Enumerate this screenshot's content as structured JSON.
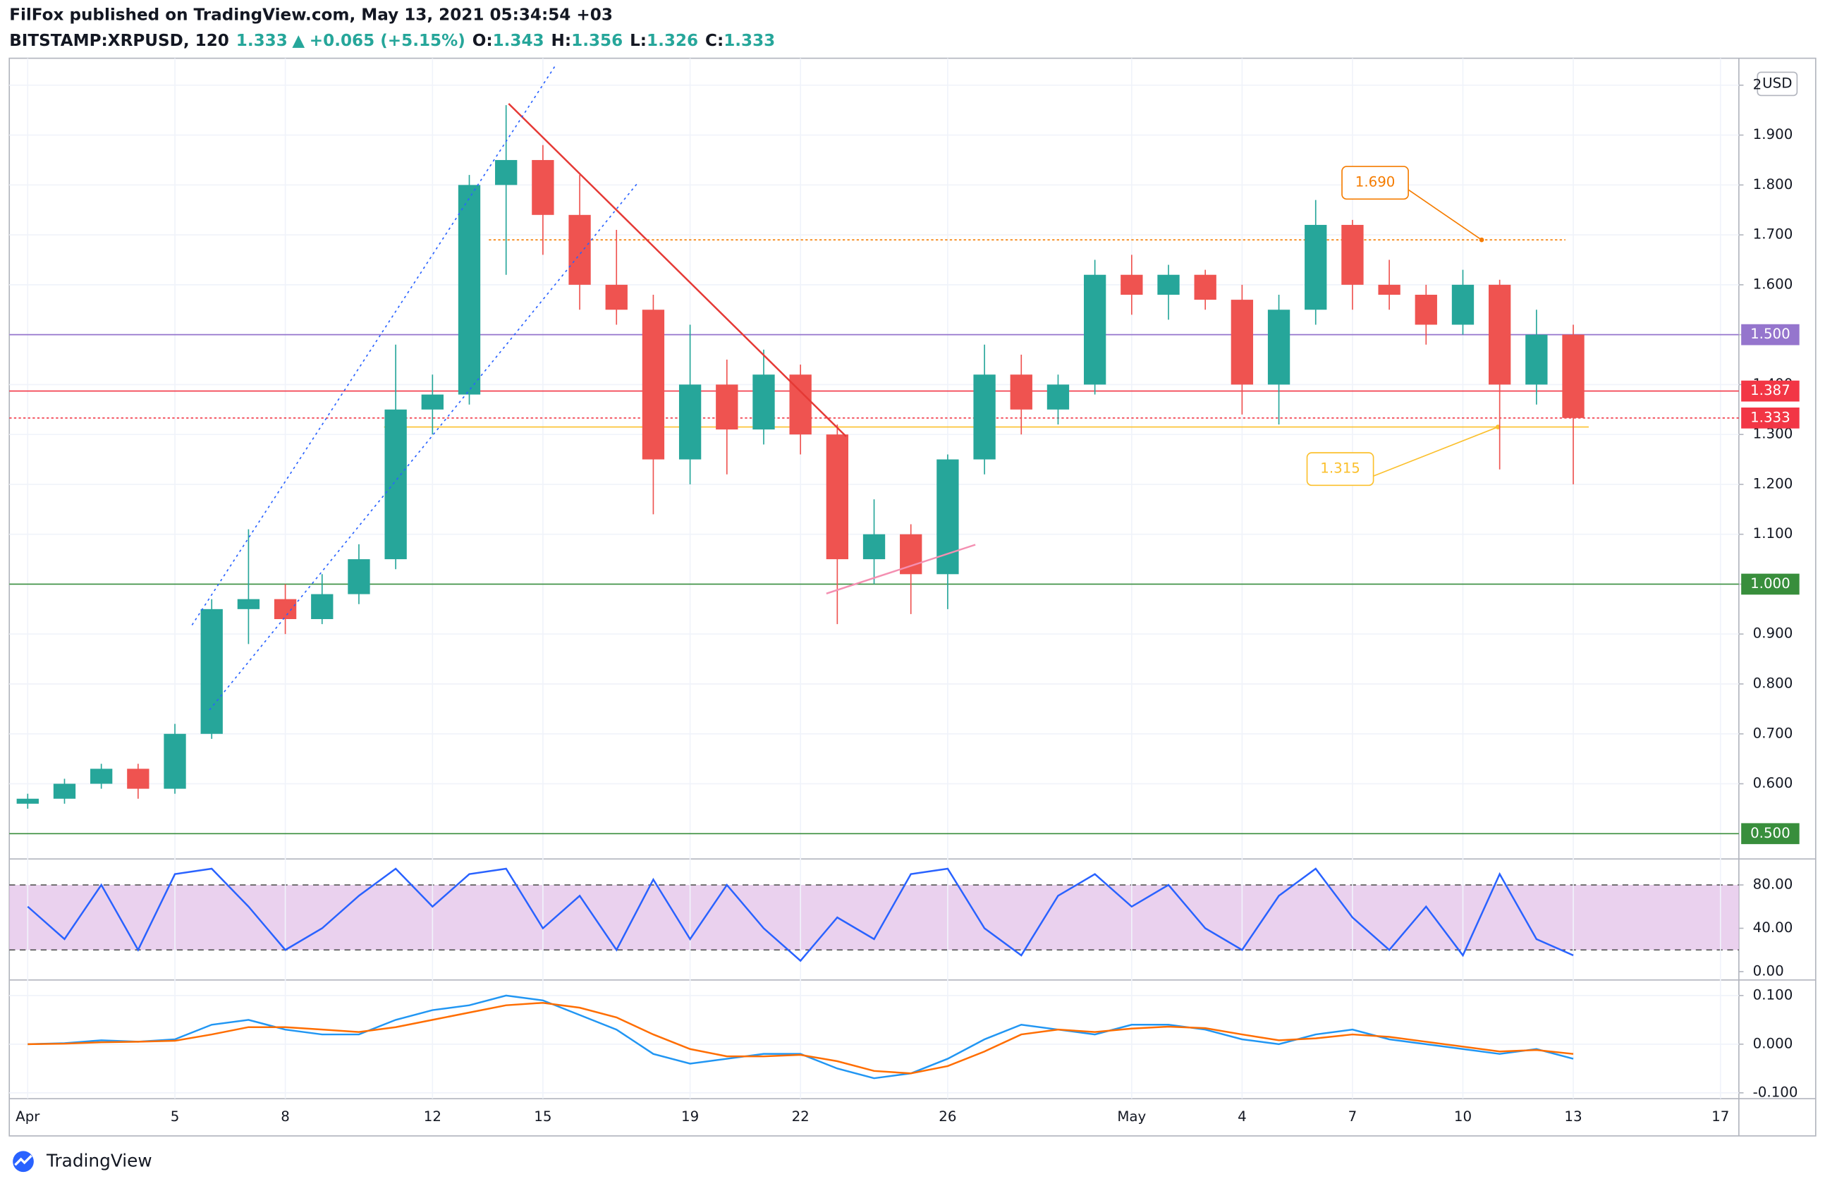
{
  "header": {
    "byline": "FilFox published on TradingView.com, May 13, 2021 05:34:54 +03",
    "symbol": "BITSTAMP:XRPUSD, 120",
    "last": "1.333",
    "arrow": "▲",
    "change": "+0.065 (+5.15%)",
    "o_label": "O:",
    "o": "1.343",
    "h_label": "H:",
    "h": "1.356",
    "l_label": "L:",
    "l": "1.326",
    "c_label": "C:",
    "c": "1.333"
  },
  "footer": {
    "brand": "TradingView"
  },
  "chart_data": {
    "type": "candlestick",
    "currency": "USD",
    "categories": [
      "Apr",
      null,
      null,
      null,
      "5",
      null,
      null,
      "8",
      null,
      null,
      null,
      "12",
      null,
      null,
      "15",
      null,
      null,
      null,
      "19",
      null,
      null,
      "22",
      null,
      null,
      null,
      "26",
      null,
      null,
      null,
      null,
      "May",
      null,
      null,
      "4",
      null,
      null,
      "7",
      null,
      null,
      "10",
      null,
      null,
      "13",
      null,
      null,
      null,
      "17"
    ],
    "open": [
      0.56,
      0.57,
      0.6,
      0.63,
      0.59,
      0.7,
      0.95,
      0.97,
      0.93,
      0.98,
      1.05,
      1.35,
      1.38,
      1.8,
      1.85,
      1.74,
      1.6,
      1.55,
      1.25,
      1.4,
      1.31,
      1.42,
      1.3,
      1.05,
      1.1,
      1.02,
      1.25,
      1.42,
      1.35,
      1.4,
      1.62,
      1.58,
      1.62,
      1.57,
      1.4,
      1.55,
      1.72,
      1.6,
      1.58,
      1.52,
      1.6,
      1.4,
      1.5,
      null,
      null,
      null,
      null
    ],
    "high": [
      0.58,
      0.61,
      0.64,
      0.64,
      0.72,
      0.97,
      1.11,
      1.0,
      1.02,
      1.08,
      1.48,
      1.42,
      1.82,
      1.96,
      1.88,
      1.82,
      1.71,
      1.58,
      1.52,
      1.45,
      1.47,
      1.44,
      1.32,
      1.17,
      1.12,
      1.26,
      1.48,
      1.46,
      1.42,
      1.65,
      1.66,
      1.64,
      1.63,
      1.6,
      1.58,
      1.77,
      1.73,
      1.65,
      1.6,
      1.63,
      1.61,
      1.55,
      1.52,
      null,
      null,
      null,
      null
    ],
    "low": [
      0.55,
      0.56,
      0.59,
      0.57,
      0.58,
      0.69,
      0.88,
      0.9,
      0.92,
      0.96,
      1.03,
      1.3,
      1.36,
      1.62,
      1.66,
      1.55,
      1.52,
      1.14,
      1.2,
      1.22,
      1.28,
      1.26,
      0.92,
      1.0,
      0.94,
      0.95,
      1.22,
      1.3,
      1.32,
      1.38,
      1.54,
      1.53,
      1.55,
      1.34,
      1.32,
      1.52,
      1.55,
      1.55,
      1.48,
      1.5,
      1.23,
      1.36,
      1.2,
      null,
      null,
      null,
      null
    ],
    "close": [
      0.57,
      0.6,
      0.63,
      0.59,
      0.7,
      0.95,
      0.97,
      0.93,
      0.98,
      1.05,
      1.35,
      1.38,
      1.8,
      1.85,
      1.74,
      1.6,
      1.55,
      1.25,
      1.4,
      1.31,
      1.42,
      1.3,
      1.05,
      1.1,
      1.02,
      1.25,
      1.42,
      1.35,
      1.4,
      1.62,
      1.58,
      1.62,
      1.57,
      1.4,
      1.55,
      1.72,
      1.6,
      1.58,
      1.52,
      1.6,
      1.4,
      1.5,
      1.333,
      null,
      null,
      null,
      null
    ],
    "up_color": "#26a69a",
    "down_color": "#ef5350",
    "ylim": [
      0.454,
      2.054
    ],
    "yticks": [
      {
        "value": 0.6,
        "label": "0.600"
      },
      {
        "value": 0.7,
        "label": "0.700"
      },
      {
        "value": 0.8,
        "label": "0.800"
      },
      {
        "value": 0.9,
        "label": "0.900"
      },
      {
        "value": 1.0,
        "label": "1.000"
      },
      {
        "value": 1.1,
        "label": "1.100"
      },
      {
        "value": 1.2,
        "label": "1.200"
      },
      {
        "value": 1.3,
        "label": "1.300"
      },
      {
        "value": 1.4,
        "label": "1.400"
      },
      {
        "value": 1.5,
        "label": "1.500"
      },
      {
        "value": 1.6,
        "label": "1.600"
      },
      {
        "value": 1.7,
        "label": "1.700"
      },
      {
        "value": 1.8,
        "label": "1.800"
      },
      {
        "value": 1.9,
        "label": "1.900"
      },
      2
    ],
    "grid": true,
    "levels": [
      {
        "value": 1.5,
        "label": "1.500",
        "color": "#9575cd",
        "dotted": false
      },
      {
        "value": 1.387,
        "label": "1.387",
        "color": "#f23645",
        "dotted": false
      },
      {
        "value": 1.333,
        "label": "1.333",
        "color": "#f23645",
        "dotted": true
      },
      {
        "value": 1.0,
        "label": "1.000",
        "color": "#388e3c",
        "dotted": false
      },
      {
        "value": 0.5,
        "label": "0.500",
        "color": "#388e3c",
        "dotted": false
      }
    ],
    "callouts": [
      {
        "value": 1.69,
        "label": "1.690",
        "color": "#f57c00"
      },
      {
        "value": 1.315,
        "label": "1.315",
        "color": "#fbc02d"
      }
    ],
    "stoch": {
      "values": [
        60,
        30,
        80,
        20,
        90,
        95,
        60,
        20,
        40,
        70,
        95,
        60,
        90,
        95,
        40,
        70,
        20,
        85,
        30,
        80,
        40,
        10,
        50,
        30,
        90,
        95,
        40,
        15,
        70,
        90,
        60,
        80,
        40,
        20,
        70,
        95,
        50,
        20,
        60,
        15,
        90,
        30,
        15,
        null,
        null,
        null,
        null
      ],
      "color": "#2962ff",
      "band": [
        20,
        80
      ],
      "band_color": "#e1bee7",
      "ylim": [
        -7.7,
        104
      ],
      "yticks": [
        {
          "value": 80,
          "label": "80.00"
        },
        {
          "value": 40,
          "label": "40.00"
        },
        {
          "value": 0,
          "label": "0.00"
        }
      ]
    },
    "macd": {
      "values": [
        0,
        0.002,
        0.008,
        0.005,
        0.01,
        0.04,
        0.05,
        0.03,
        0.02,
        0.02,
        0.05,
        0.07,
        0.08,
        0.1,
        0.09,
        0.06,
        0.03,
        -0.02,
        -0.04,
        -0.03,
        -0.02,
        -0.02,
        -0.05,
        -0.07,
        -0.06,
        -0.03,
        0.01,
        0.04,
        0.03,
        0.02,
        0.04,
        0.04,
        0.03,
        0.01,
        0,
        0.02,
        0.03,
        0.01,
        0,
        -0.01,
        -0.02,
        -0.01,
        -0.03,
        null,
        null,
        null,
        null
      ],
      "signal": [
        0,
        0.001,
        0.004,
        0.005,
        0.007,
        0.02,
        0.035,
        0.035,
        0.03,
        0.025,
        0.035,
        0.05,
        0.065,
        0.08,
        0.085,
        0.075,
        0.055,
        0.02,
        -0.01,
        -0.025,
        -0.025,
        -0.022,
        -0.035,
        -0.055,
        -0.06,
        -0.045,
        -0.015,
        0.02,
        0.03,
        0.025,
        0.032,
        0.036,
        0.033,
        0.02,
        0.008,
        0.012,
        0.02,
        0.015,
        0.005,
        -0.005,
        -0.015,
        -0.012,
        -0.02,
        null,
        null,
        null,
        null
      ],
      "color": "#2196f3",
      "signal_color": "#ff6d00",
      "ylim": [
        -0.112,
        0.132
      ],
      "yticks": [
        {
          "value": 0.1,
          "label": "0.100"
        },
        {
          "value": 0,
          "label": "0.000"
        },
        {
          "value": -0.1,
          "label": "-0.100"
        }
      ]
    }
  }
}
